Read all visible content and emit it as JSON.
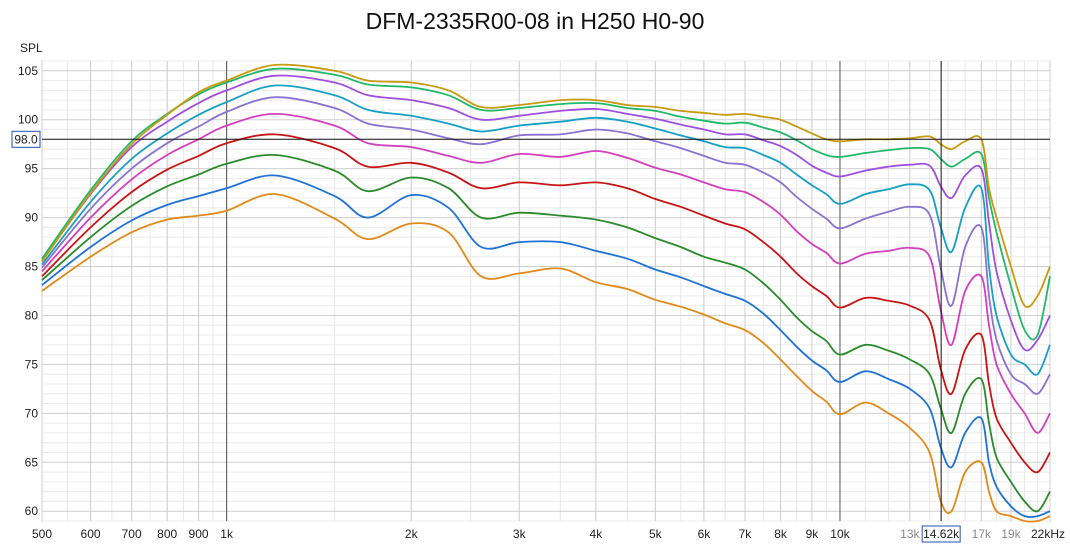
{
  "chart_data": {
    "type": "line",
    "title": "DFM-2335R00-08 in H250 H0-90",
    "ylabel": "SPL",
    "xscale": "log",
    "xlim": [
      500,
      22000
    ],
    "ylim": [
      59,
      106
    ],
    "grid": true,
    "legend": "none",
    "y_ticks": [
      60,
      65,
      70,
      75,
      80,
      85,
      90,
      95,
      100,
      105
    ],
    "x_ticks": [
      {
        "value": 500,
        "label": "500",
        "dim": false
      },
      {
        "value": 600,
        "label": "600",
        "dim": false
      },
      {
        "value": 700,
        "label": "700",
        "dim": false
      },
      {
        "value": 800,
        "label": "800",
        "dim": false
      },
      {
        "value": 900,
        "label": "900",
        "dim": false
      },
      {
        "value": 1000,
        "label": "1k",
        "dim": false
      },
      {
        "value": 2000,
        "label": "2k",
        "dim": false
      },
      {
        "value": 3000,
        "label": "3k",
        "dim": false
      },
      {
        "value": 4000,
        "label": "4k",
        "dim": false
      },
      {
        "value": 5000,
        "label": "5k",
        "dim": false
      },
      {
        "value": 6000,
        "label": "6k",
        "dim": false
      },
      {
        "value": 7000,
        "label": "7k",
        "dim": false
      },
      {
        "value": 8000,
        "label": "8k",
        "dim": false
      },
      {
        "value": 9000,
        "label": "9k",
        "dim": false
      },
      {
        "value": 10000,
        "label": "10k",
        "dim": false
      },
      {
        "value": 13000,
        "label": "13k",
        "dim": true
      },
      {
        "value": 17000,
        "label": "17k",
        "dim": true
      },
      {
        "value": 19000,
        "label": "19k",
        "dim": true
      },
      {
        "value": 22000,
        "label": "22kHz",
        "dim": false
      }
    ],
    "cursor": {
      "x": 14620,
      "y": 98.0,
      "x_label": "14.62k",
      "y_label": "98.0"
    },
    "x": [
      500,
      600,
      700,
      800,
      900,
      1000,
      1200,
      1500,
      1700,
      2000,
      2300,
      2600,
      3000,
      3500,
      4000,
      4500,
      5000,
      5500,
      6000,
      6500,
      7000,
      7500,
      8000,
      8500,
      9000,
      9500,
      10000,
      11000,
      12000,
      13000,
      14000,
      14600,
      15200,
      16000,
      17000,
      17500,
      18000,
      19000,
      20000,
      21000,
      22000
    ],
    "series": [
      {
        "color": "#c79a10",
        "values": [
          85.5,
          92.5,
          97.5,
          100.5,
          102.8,
          104.0,
          105.6,
          105.0,
          104.0,
          103.8,
          103.0,
          101.3,
          101.5,
          102.0,
          102.0,
          101.5,
          101.3,
          100.9,
          100.7,
          100.5,
          100.6,
          100.3,
          100.0,
          99.3,
          98.6,
          98.0,
          97.8,
          98.0,
          98.0,
          98.1,
          98.3,
          97.5,
          97.0,
          97.8,
          98.0,
          93.0,
          90.0,
          85.0,
          81.0,
          82.0,
          85.0
        ]
      },
      {
        "color": "#22b86a",
        "values": [
          85.8,
          92.8,
          97.8,
          100.6,
          102.6,
          103.8,
          105.2,
          104.6,
          103.6,
          103.3,
          102.5,
          101.0,
          101.2,
          101.6,
          101.7,
          101.2,
          100.9,
          100.3,
          99.9,
          99.6,
          99.7,
          99.2,
          98.7,
          97.9,
          97.0,
          96.4,
          96.2,
          96.6,
          96.9,
          97.1,
          97.0,
          96.0,
          95.2,
          96.0,
          96.5,
          92.0,
          88.5,
          83.0,
          78.5,
          78.0,
          84.0
        ]
      },
      {
        "color": "#9e4fe0",
        "values": [
          85.6,
          92.4,
          97.2,
          99.8,
          101.7,
          103.0,
          104.5,
          103.8,
          102.5,
          102.0,
          101.2,
          100.0,
          100.4,
          100.9,
          101.1,
          100.6,
          100.1,
          99.5,
          99.0,
          98.5,
          98.5,
          97.9,
          97.3,
          96.4,
          95.3,
          94.6,
          94.2,
          94.8,
          95.2,
          95.4,
          95.3,
          93.2,
          92.0,
          94.3,
          95.0,
          89.5,
          84.5,
          79.5,
          76.5,
          77.5,
          80.0
        ]
      },
      {
        "color": "#17a0c4",
        "values": [
          85.2,
          91.6,
          96.0,
          98.6,
          100.5,
          101.8,
          103.5,
          102.5,
          101.0,
          100.4,
          99.6,
          98.8,
          99.4,
          99.8,
          100.2,
          99.8,
          99.1,
          98.4,
          97.8,
          97.2,
          97.1,
          96.4,
          95.6,
          94.4,
          93.3,
          92.4,
          91.4,
          92.4,
          92.9,
          93.4,
          92.8,
          89.0,
          86.5,
          91.0,
          93.0,
          85.0,
          80.0,
          76.0,
          75.0,
          74.0,
          77.0
        ]
      },
      {
        "color": "#8a72d0",
        "values": [
          84.9,
          90.9,
          95.0,
          97.6,
          99.3,
          100.8,
          102.3,
          101.2,
          99.6,
          99.0,
          98.1,
          97.5,
          98.4,
          98.5,
          99.0,
          98.6,
          97.8,
          97.1,
          96.3,
          95.6,
          95.4,
          94.6,
          93.6,
          92.1,
          90.9,
          89.9,
          88.9,
          89.9,
          90.6,
          91.1,
          90.3,
          84.8,
          81.0,
          87.0,
          89.0,
          82.0,
          77.5,
          74.0,
          73.0,
          72.0,
          74.0
        ]
      },
      {
        "color": "#d43fbd",
        "values": [
          84.5,
          90.0,
          93.9,
          96.4,
          98.0,
          99.4,
          100.6,
          99.4,
          97.6,
          97.2,
          96.3,
          95.6,
          96.5,
          96.2,
          96.8,
          96.1,
          95.1,
          94.4,
          93.6,
          92.9,
          92.6,
          91.6,
          90.3,
          88.6,
          87.3,
          86.4,
          85.3,
          86.3,
          86.6,
          86.9,
          86.0,
          80.5,
          77.0,
          82.5,
          84.0,
          79.0,
          75.0,
          72.0,
          70.0,
          68.0,
          70.0
        ]
      },
      {
        "color": "#c81414",
        "values": [
          84.0,
          89.0,
          92.6,
          94.9,
          96.3,
          97.6,
          98.5,
          97.1,
          95.2,
          95.6,
          94.6,
          93.0,
          93.6,
          93.3,
          93.6,
          93.0,
          91.9,
          91.1,
          90.2,
          89.4,
          88.8,
          87.5,
          86.0,
          84.3,
          83.0,
          82.0,
          80.8,
          81.8,
          81.5,
          81.0,
          79.5,
          74.5,
          72.0,
          76.5,
          78.0,
          73.0,
          69.5,
          67.0,
          65.0,
          64.0,
          66.0
        ]
      },
      {
        "color": "#2a8b2a",
        "values": [
          83.6,
          88.0,
          91.2,
          93.2,
          94.4,
          95.5,
          96.4,
          94.8,
          92.7,
          94.1,
          93.0,
          90.0,
          90.5,
          90.2,
          89.8,
          89.0,
          87.9,
          87.0,
          86.0,
          85.4,
          84.7,
          83.3,
          81.6,
          79.8,
          78.4,
          77.4,
          76.0,
          77.0,
          76.4,
          75.5,
          74.0,
          70.5,
          68.0,
          72.0,
          73.5,
          69.0,
          65.5,
          63.0,
          61.0,
          60.0,
          62.0
        ]
      },
      {
        "color": "#1f72d6",
        "values": [
          83.1,
          87.0,
          89.7,
          91.3,
          92.2,
          93.0,
          94.3,
          92.2,
          90.0,
          92.3,
          91.0,
          87.0,
          87.5,
          87.5,
          86.6,
          85.8,
          84.7,
          83.9,
          83.0,
          82.2,
          81.5,
          80.2,
          78.5,
          76.8,
          75.4,
          74.4,
          73.2,
          74.3,
          73.5,
          72.5,
          70.5,
          66.5,
          64.5,
          68.0,
          69.5,
          65.0,
          62.5,
          60.5,
          59.5,
          59.5,
          60.0
        ]
      },
      {
        "color": "#e08a1a",
        "values": [
          82.5,
          86.0,
          88.5,
          89.8,
          90.2,
          90.7,
          92.4,
          89.9,
          87.8,
          89.4,
          88.5,
          84.0,
          84.3,
          84.8,
          83.4,
          82.7,
          81.6,
          80.9,
          80.1,
          79.2,
          78.5,
          77.2,
          75.5,
          73.8,
          72.3,
          71.2,
          69.9,
          71.1,
          70.0,
          68.5,
          66.0,
          61.0,
          60.0,
          64.0,
          65.0,
          62.0,
          60.0,
          59.5,
          59.0,
          59.0,
          59.5
        ]
      }
    ]
  }
}
